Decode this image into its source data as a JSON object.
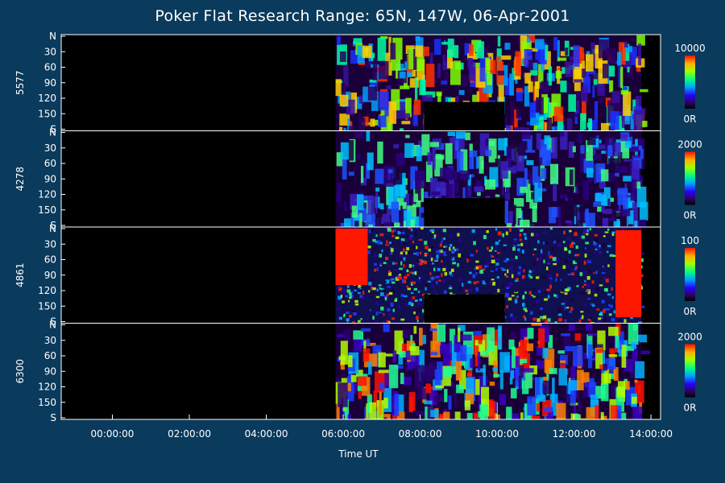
{
  "chart_data": {
    "type": "heatmap",
    "title": "Poker Flat Research Range: 65N, 147W, 06-Apr-2001",
    "xlabel": "Time UT",
    "x_ticks": [
      "00:00:00",
      "02:00:00",
      "04:00:00",
      "06:00:00",
      "08:00:00",
      "10:00:00",
      "12:00:00",
      "14:00:00"
    ],
    "x_range_hours": [
      -1.33,
      14.25
    ],
    "y_ticks": [
      "N",
      "30",
      "60",
      "90",
      "120",
      "150",
      "S"
    ],
    "y_range_deg": [
      0,
      180
    ],
    "panels": [
      {
        "name": "5577",
        "colorbar_max": "10000",
        "colorbar_min": "0R",
        "data_start_hour": 5.8,
        "data_end_hour": 13.75
      },
      {
        "name": "4278",
        "colorbar_max": "2000",
        "colorbar_min": "0R",
        "data_start_hour": 5.8,
        "data_end_hour": 13.75
      },
      {
        "name": "4861",
        "colorbar_max": "100",
        "colorbar_min": "0R",
        "data_start_hour": 5.8,
        "data_end_hour": 13.75
      },
      {
        "name": "6300",
        "colorbar_max": "2000",
        "colorbar_min": "0R",
        "data_start_hour": 5.8,
        "data_end_hour": 13.75
      }
    ]
  }
}
